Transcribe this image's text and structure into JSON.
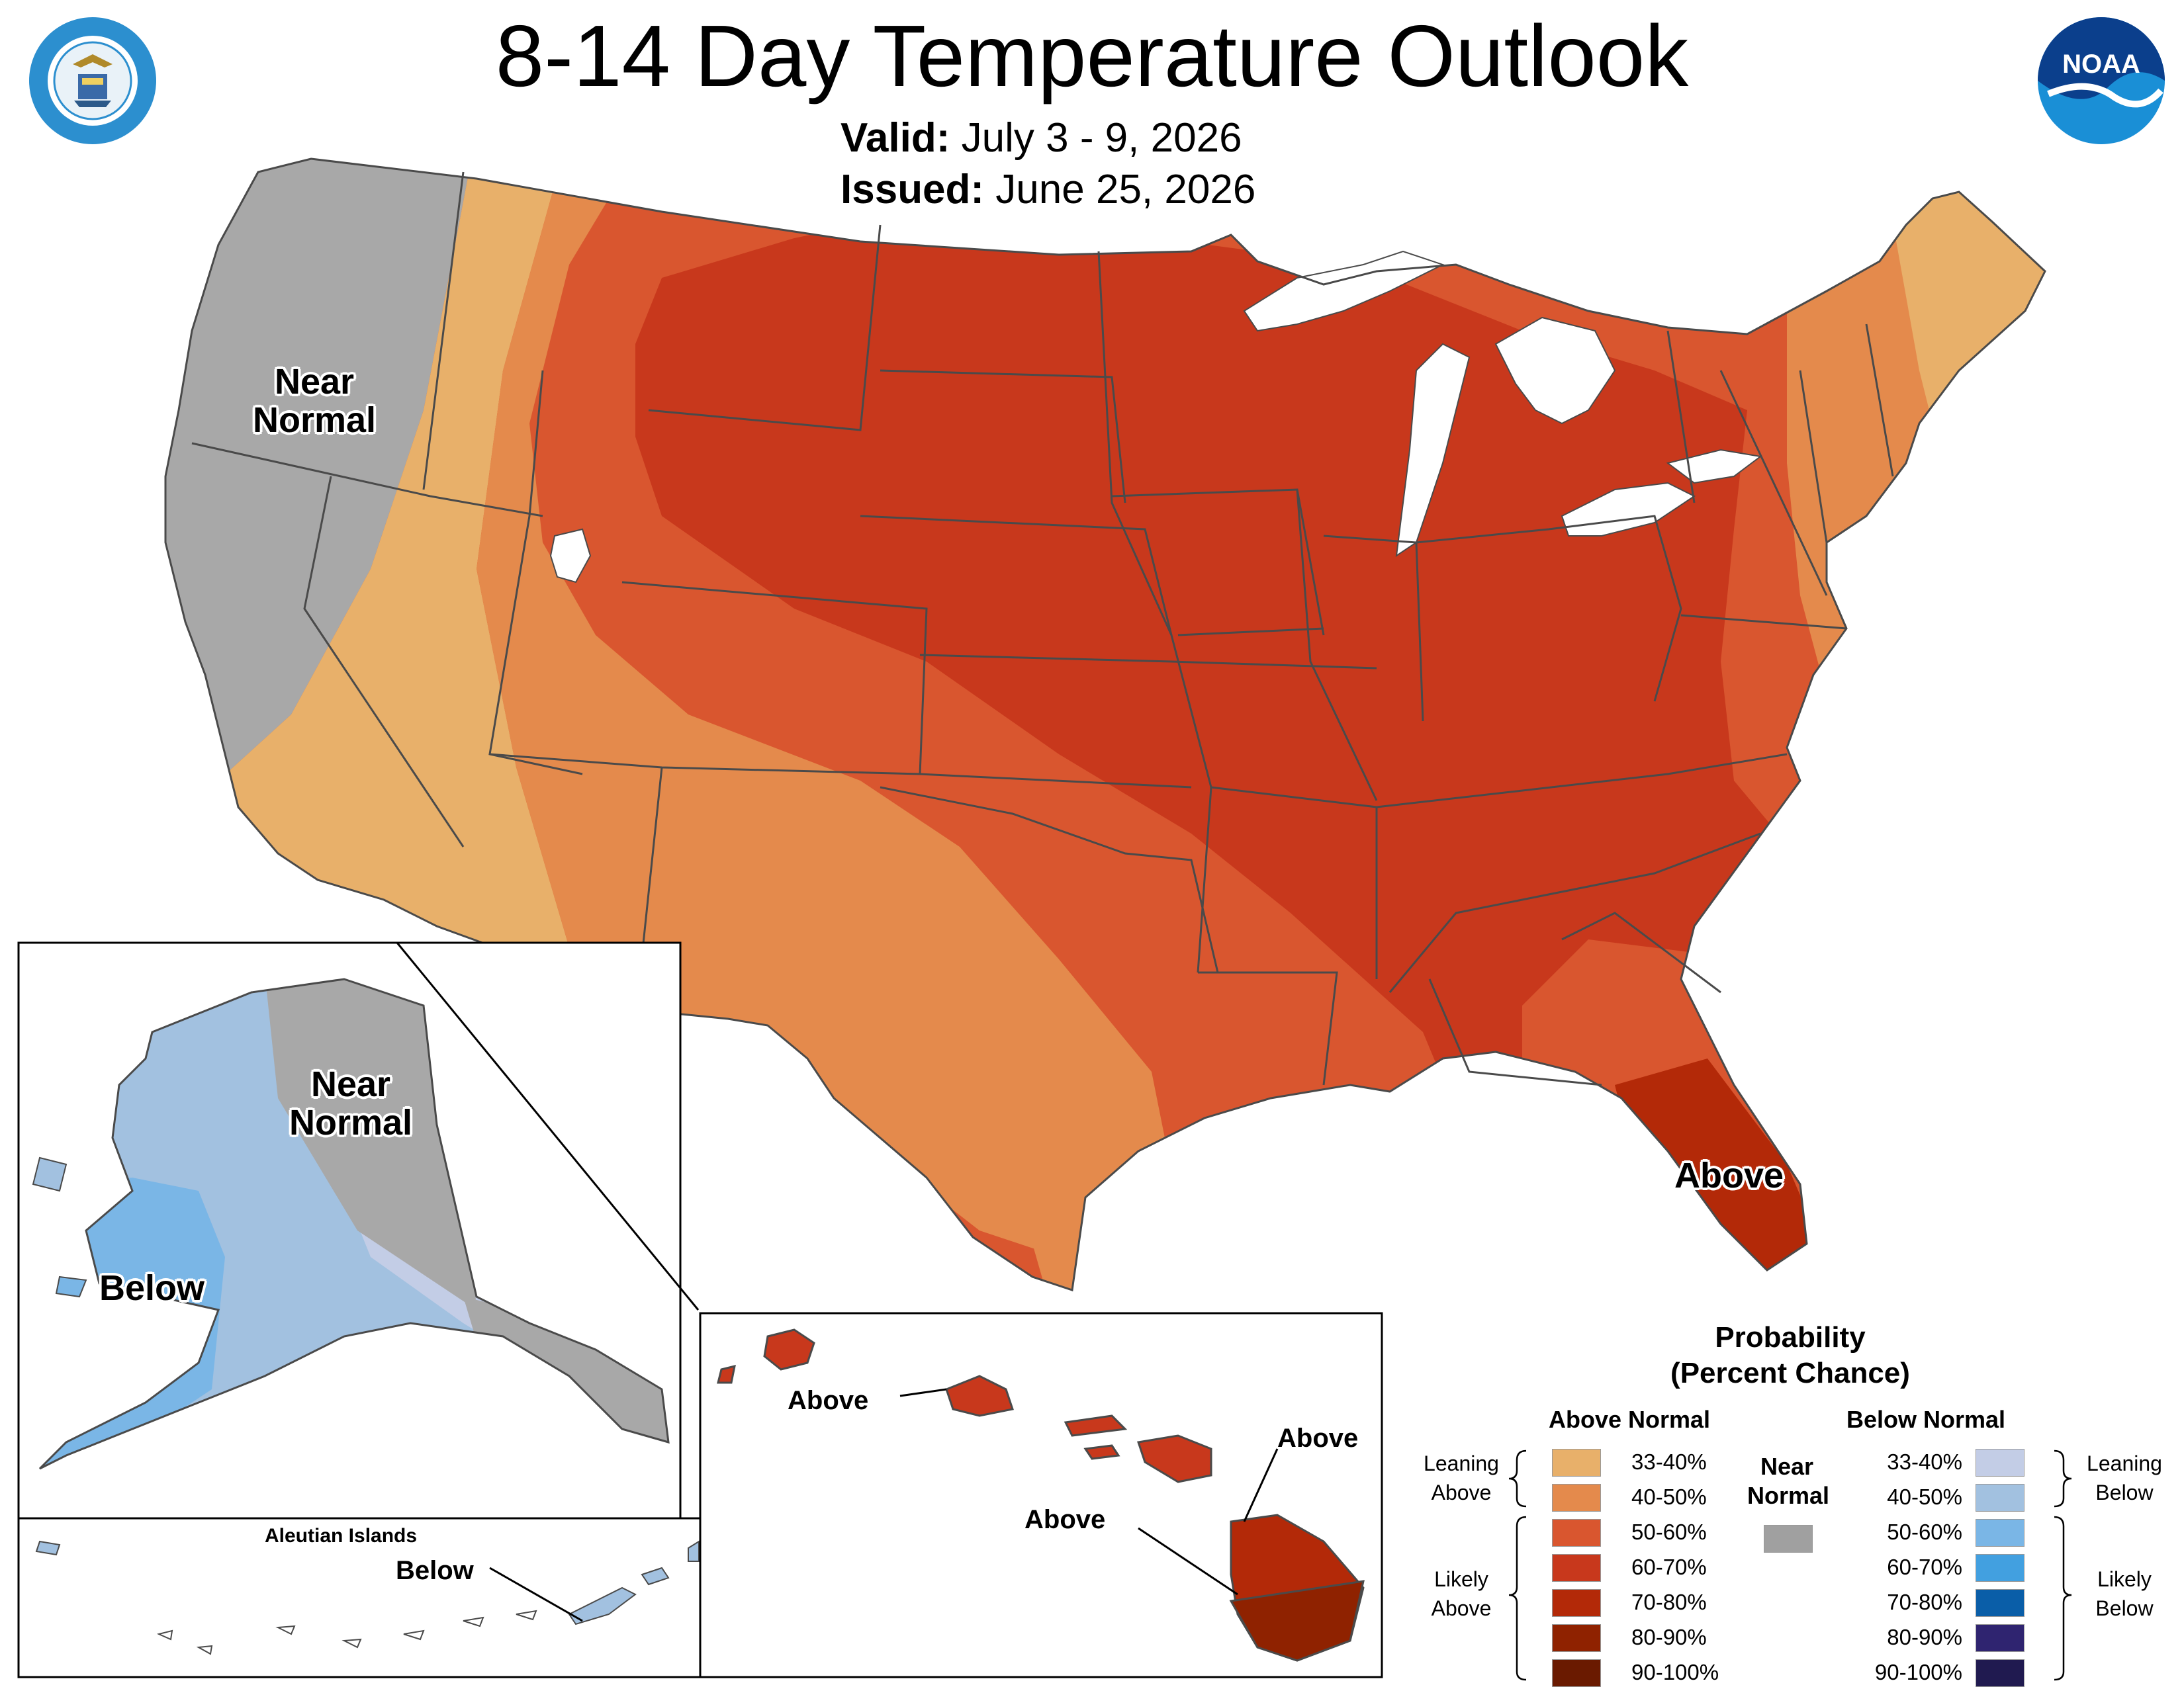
{
  "header": {
    "title": "8-14 Day Temperature Outlook",
    "valid_label": "Valid:",
    "valid_value": "July 3 - 9, 2026",
    "issued_label": "Issued:",
    "issued_value": "June 25, 2026"
  },
  "logos": {
    "left": "Department of Commerce seal",
    "right": "NOAA",
    "left_icon": "doc-seal-icon",
    "right_icon": "noaa-logo-icon"
  },
  "map_labels": {
    "conus_near_normal": [
      "Near",
      "Normal"
    ],
    "conus_above": "Above",
    "alaska_near_normal": [
      "Near",
      "Normal"
    ],
    "alaska_below": "Below",
    "aleutian_title": "Aleutian Islands",
    "aleutian_below": "Below",
    "hawaii_above_1": "Above",
    "hawaii_above_2": "Above",
    "hawaii_above_3": "Above"
  },
  "legend": {
    "title_line1": "Probability",
    "title_line2": "(Percent Chance)",
    "above_heading": "Above Normal",
    "below_heading": "Below Normal",
    "near_heading": [
      "Near",
      "Normal"
    ],
    "near_color": "#a0a0a0",
    "above_rows": [
      {
        "label": "33-40%",
        "color": "#e8b06a"
      },
      {
        "label": "40-50%",
        "color": "#e48a4c"
      },
      {
        "label": "50-60%",
        "color": "#d9562f"
      },
      {
        "label": "60-70%",
        "color": "#c8381c"
      },
      {
        "label": "70-80%",
        "color": "#b32908"
      },
      {
        "label": "80-90%",
        "color": "#8f2200"
      },
      {
        "label": "90-100%",
        "color": "#6a1a00"
      }
    ],
    "below_rows": [
      {
        "label": "33-40%",
        "color": "#c3cde6"
      },
      {
        "label": "40-50%",
        "color": "#a2c1e0"
      },
      {
        "label": "50-60%",
        "color": "#7ab6e6"
      },
      {
        "label": "60-70%",
        "color": "#42a0e0"
      },
      {
        "label": "70-80%",
        "color": "#0a5ea8"
      },
      {
        "label": "80-90%",
        "color": "#2f2470"
      },
      {
        "label": "90-100%",
        "color": "#201a50"
      }
    ],
    "leaning_above": [
      "Leaning",
      "Above"
    ],
    "likely_above": [
      "Likely",
      "Above"
    ],
    "leaning_below": [
      "Leaning",
      "Below"
    ],
    "likely_below": [
      "Likely",
      "Below"
    ]
  },
  "colors": {
    "near_normal": "#a8a8a8",
    "state_border": "#4a4a4a",
    "lake": "#ffffff"
  }
}
